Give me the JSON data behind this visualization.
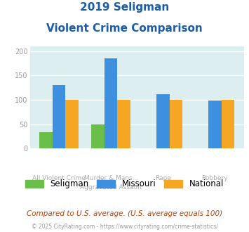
{
  "title_line1": "2019 Seligman",
  "title_line2": "Violent Crime Comparison",
  "top_labels": [
    "",
    "Murder & Mans...",
    "",
    ""
  ],
  "bottom_labels": [
    "All Violent Crime",
    "Aggravated Assault",
    "Rape",
    "Robbery"
  ],
  "seligman": [
    33,
    49,
    0,
    0
  ],
  "missouri": [
    130,
    185,
    112,
    99
  ],
  "national": [
    100,
    100,
    100,
    100
  ],
  "colors": {
    "seligman": "#6abf4b",
    "missouri": "#3d8fe0",
    "national": "#f5a623"
  },
  "ylim": [
    0,
    210
  ],
  "yticks": [
    0,
    50,
    100,
    150,
    200
  ],
  "background_color": "#ddeef0",
  "title_color": "#1a5ca8",
  "subtitle_note": "Compared to U.S. average. (U.S. average equals 100)",
  "footer": "© 2025 CityRating.com - https://www.cityrating.com/crime-statistics/",
  "bar_width": 0.25
}
